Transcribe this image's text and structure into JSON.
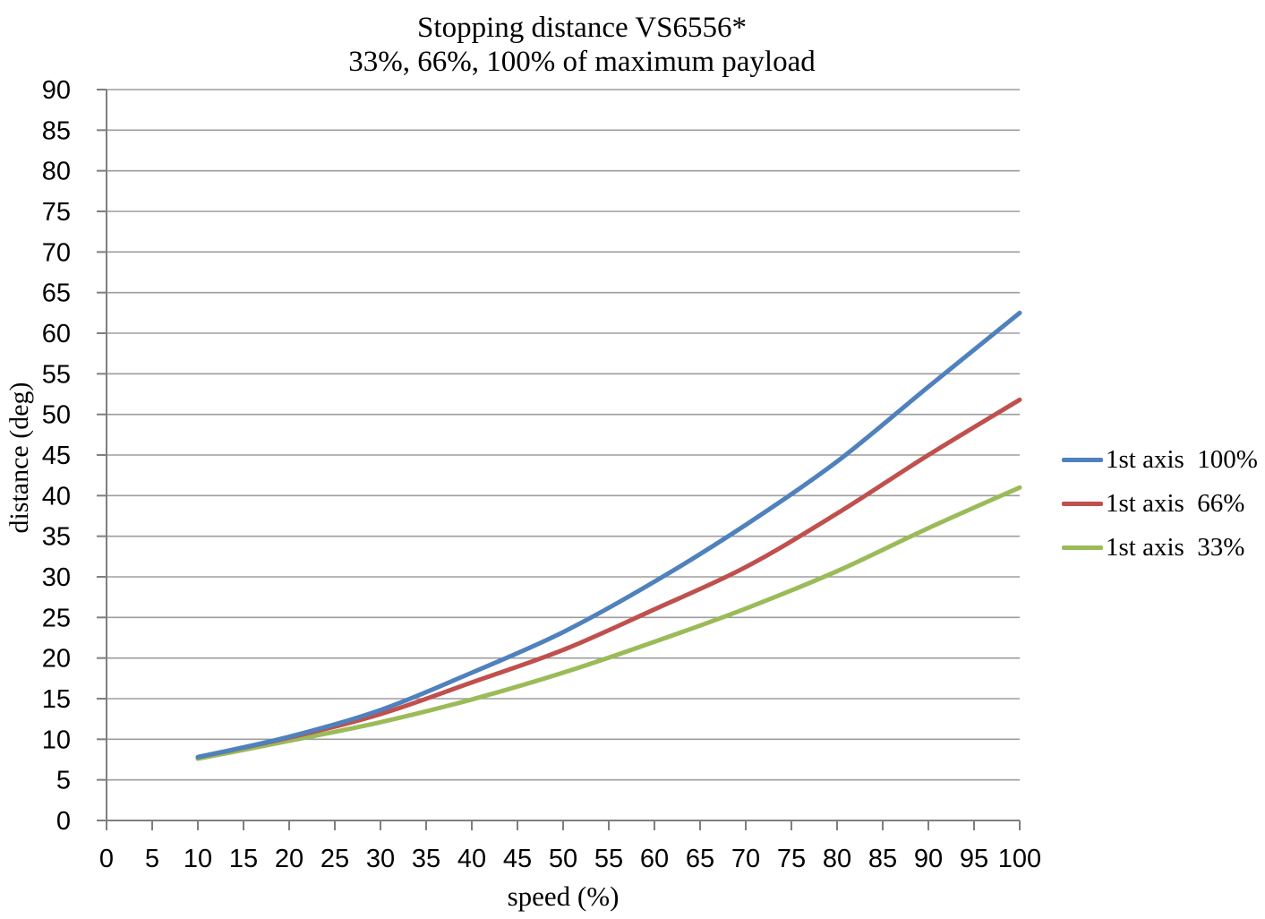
{
  "title": {
    "line1": "Stopping distance VS6556*",
    "line2": "33%, 66%, 100% of maximum payload"
  },
  "chart_data": {
    "type": "line",
    "title": "Stopping distance VS6556*",
    "subtitle": "33%, 66%, 100% of maximum payload",
    "xlabel": "speed (%)",
    "ylabel": "distance (deg)",
    "x": [
      10,
      20,
      30,
      40,
      50,
      60,
      70,
      80,
      90,
      100
    ],
    "series": [
      {
        "name": "1st axis  100%",
        "color": "#4F81BD",
        "values": [
          7.8,
          10.3,
          13.6,
          18.2,
          23.2,
          29.4,
          36.4,
          44.2,
          53.4,
          62.5
        ]
      },
      {
        "name": "1st axis  66%",
        "color": "#C0504D",
        "values": [
          7.8,
          10.2,
          13.1,
          17.0,
          21.0,
          26.0,
          31.2,
          37.8,
          45.0,
          51.8
        ]
      },
      {
        "name": "1st axis  33%",
        "color": "#9BBB59",
        "values": [
          7.6,
          9.8,
          12.1,
          14.9,
          18.2,
          22.0,
          26.1,
          30.7,
          36.0,
          41.0
        ]
      }
    ],
    "xlim": [
      0,
      100
    ],
    "ylim": [
      0,
      90
    ],
    "x_ticks": [
      0,
      5,
      10,
      15,
      20,
      25,
      30,
      35,
      40,
      45,
      50,
      55,
      60,
      65,
      70,
      75,
      80,
      85,
      90,
      95,
      100
    ],
    "y_ticks": [
      0,
      5,
      10,
      15,
      20,
      25,
      30,
      35,
      40,
      45,
      50,
      55,
      60,
      65,
      70,
      75,
      80,
      85,
      90
    ],
    "grid": "horizontal gridlines only",
    "legend_position": "right",
    "smooth_lines": true,
    "colors": {
      "gridline": "#9d9d9d",
      "axis": "#7f7f7f",
      "text": "#000000",
      "background": "#ffffff"
    }
  }
}
